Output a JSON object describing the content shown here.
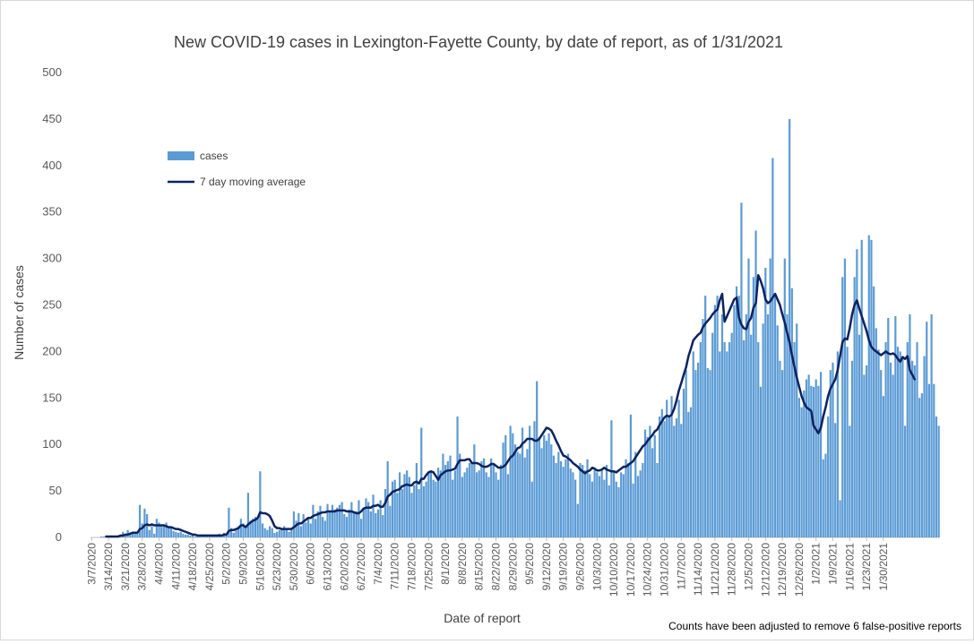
{
  "chart_data": {
    "type": "bar",
    "title": "New COVID-19 cases in Lexington-Fayette County, by date of report, as of 1/31/2021",
    "xlabel": "Date of report",
    "ylabel": "Number of cases",
    "note": "Counts have been adjusted to remove 6 false-positive reports",
    "ylim": [
      0,
      500
    ],
    "yticks": [
      0,
      50,
      100,
      150,
      200,
      250,
      300,
      350,
      400,
      450,
      500
    ],
    "x_start": "3/7/2020",
    "x_end": "1/31/2021",
    "xtick_labels": [
      "3/7/2020",
      "3/14/2020",
      "3/21/2020",
      "3/28/2020",
      "4/4/2020",
      "4/11/2020",
      "4/18/2020",
      "4/25/2020",
      "5/2/2020",
      "5/9/2020",
      "5/16/2020",
      "5/23/2020",
      "5/30/2020",
      "6/6/2020",
      "6/13/2020",
      "6/20/2020",
      "6/27/2020",
      "7/4/2020",
      "7/11/2020",
      "7/18/2020",
      "7/25/2020",
      "8/1/2020",
      "8/8/2020",
      "8/15/2020",
      "8/22/2020",
      "8/29/2020",
      "9/5/2020",
      "9/12/2020",
      "9/19/2020",
      "9/26/2020",
      "10/3/2020",
      "10/10/2020",
      "10/17/2020",
      "10/24/2020",
      "10/31/2020",
      "11/7/2020",
      "11/14/2020",
      "11/21/2020",
      "11/28/2020",
      "12/5/2020",
      "12/12/2020",
      "12/19/2020",
      "12/26/2020",
      "1/2/2021",
      "1/9/2021",
      "1/16/2021",
      "1/23/2021",
      "1/30/2021"
    ],
    "grid": false,
    "legend_position": "top-left",
    "series": [
      {
        "name": "cases",
        "kind": "bar",
        "color": "#5b9bd5",
        "values": [
          0,
          0,
          0,
          0,
          1,
          1,
          1,
          0,
          1,
          0,
          1,
          2,
          3,
          6,
          3,
          8,
          5,
          5,
          4,
          4,
          35,
          15,
          31,
          25,
          8,
          12,
          4,
          20,
          16,
          12,
          14,
          16,
          12,
          10,
          7,
          6,
          5,
          6,
          4,
          3,
          3,
          2,
          2,
          1,
          2,
          1,
          1,
          1,
          3,
          2,
          1,
          3,
          2,
          4,
          3,
          5,
          2,
          32,
          10,
          5,
          8,
          12,
          20,
          15,
          10,
          48,
          18,
          20,
          22,
          20,
          71,
          15,
          10,
          8,
          12,
          10,
          5,
          6,
          8,
          10,
          12,
          10,
          6,
          8,
          28,
          18,
          26,
          12,
          25,
          16,
          22,
          15,
          35,
          20,
          28,
          34,
          22,
          18,
          36,
          28,
          35,
          30,
          32,
          35,
          38,
          25,
          22,
          30,
          38,
          26,
          28,
          40,
          20,
          32,
          42,
          38,
          28,
          46,
          26,
          30,
          40,
          24,
          52,
          82,
          34,
          60,
          62,
          48,
          70,
          52,
          68,
          72,
          65,
          48,
          56,
          80,
          52,
          118,
          55,
          60,
          70,
          72,
          62,
          60,
          75,
          72,
          90,
          78,
          82,
          88,
          62,
          72,
          130,
          90,
          65,
          70,
          75,
          80,
          80,
          100,
          70,
          72,
          82,
          85,
          70,
          65,
          85,
          80,
          70,
          62,
          78,
          102,
          110,
          68,
          120,
          112,
          100,
          92,
          90,
          118,
          86,
          95,
          120,
          60,
          125,
          168,
          108,
          96,
          110,
          104,
          112,
          100,
          88,
          80,
          92,
          82,
          76,
          84,
          90,
          74,
          70,
          62,
          36,
          80,
          78,
          72,
          84,
          68,
          60,
          74,
          70,
          66,
          72,
          62,
          78,
          56,
          126,
          72,
          60,
          54,
          70,
          68,
          84,
          80,
          132,
          58,
          92,
          66,
          72,
          80,
          116,
          108,
          120,
          96,
          110,
          80,
          130,
          138,
          125,
          148,
          130,
          152,
          120,
          128,
          148,
          122,
          160,
          180,
          135,
          140,
          200,
          180,
          188,
          210,
          235,
          260,
          182,
          180,
          220,
          250,
          260,
          200,
          240,
          210,
          200,
          210,
          220,
          250,
          270,
          260,
          360,
          212,
          240,
          300,
          218,
          280,
          330,
          210,
          162,
          230,
          290,
          240,
          300,
          408,
          260,
          228,
          190,
          180,
          300,
          240,
          450,
          268,
          210,
          230,
          150,
          140,
          158,
          170,
          175,
          163,
          162,
          170,
          163,
          178,
          84,
          90,
          130,
          180,
          188,
          123,
          200,
          40,
          280,
          300,
          205,
          120,
          190,
          280,
          310,
          218,
          320,
          175,
          185,
          325,
          320,
          270,
          225,
          202,
          180,
          152,
          210,
          236,
          188,
          175,
          238,
          205,
          200,
          195,
          120,
          210,
          240,
          190,
          185,
          210,
          150,
          155,
          195,
          232,
          165,
          240,
          165,
          130,
          120
        ]
      },
      {
        "name": "7 day moving average",
        "kind": "line",
        "color": "#0d2262",
        "values": [
          null,
          null,
          null,
          null,
          null,
          null,
          1,
          1,
          1,
          1,
          1,
          1,
          2,
          2,
          3,
          3,
          4,
          5,
          5,
          5,
          9,
          10,
          13,
          14,
          13,
          14,
          13,
          13,
          13,
          13,
          13,
          12,
          11,
          11,
          10,
          9,
          9,
          8,
          7,
          6,
          5,
          4,
          3,
          3,
          2,
          2,
          2,
          2,
          2,
          2,
          2,
          2,
          2,
          2,
          2,
          3,
          3,
          7,
          8,
          8,
          9,
          10,
          13,
          13,
          11,
          14,
          16,
          18,
          19,
          21,
          27,
          26,
          26,
          25,
          23,
          18,
          12,
          10,
          10,
          9,
          9,
          9,
          9,
          9,
          11,
          13,
          15,
          15,
          17,
          19,
          21,
          21,
          23,
          24,
          25,
          26,
          27,
          27,
          28,
          28,
          28,
          28,
          29,
          29,
          29,
          29,
          28,
          28,
          28,
          27,
          26,
          26,
          28,
          31,
          32,
          32,
          32,
          34,
          34,
          35,
          33,
          33,
          37,
          44,
          46,
          49,
          50,
          51,
          52,
          55,
          56,
          57,
          56,
          56,
          59,
          60,
          58,
          63,
          63,
          67,
          70,
          71,
          70,
          66,
          62,
          67,
          69,
          71,
          72,
          72,
          73,
          74,
          79,
          83,
          83,
          83,
          84,
          84,
          80,
          80,
          80,
          79,
          77,
          76,
          76,
          77,
          79,
          79,
          77,
          75,
          75,
          76,
          78,
          82,
          86,
          88,
          92,
          96,
          97,
          101,
          103,
          106,
          106,
          106,
          104,
          104,
          106,
          110,
          114,
          118,
          117,
          115,
          110,
          104,
          99,
          93,
          88,
          87,
          85,
          83,
          80,
          78,
          76,
          73,
          71,
          69,
          71,
          72,
          75,
          74,
          72,
          72,
          73,
          75,
          73,
          72,
          71,
          71,
          70,
          72,
          74,
          76,
          76,
          78,
          80,
          82,
          86,
          90,
          94,
          98,
          100,
          104,
          107,
          110,
          114,
          116,
          121,
          125,
          129,
          131,
          130,
          132,
          138,
          147,
          158,
          166,
          175,
          183,
          195,
          203,
          212,
          215,
          218,
          220,
          226,
          230,
          233,
          236,
          240,
          243,
          245,
          255,
          262,
          232,
          238,
          244,
          250,
          256,
          258,
          236,
          229,
          225,
          224,
          232,
          236,
          247,
          252,
          282,
          276,
          268,
          256,
          252,
          254,
          258,
          262,
          256,
          250,
          240,
          231,
          220,
          210,
          196,
          184,
          172,
          162,
          152,
          145,
          140,
          138,
          136,
          120,
          116,
          112,
          118,
          130,
          140,
          152,
          160,
          165,
          170,
          180,
          195,
          210,
          214,
          213,
          225,
          240,
          250,
          255,
          246,
          238,
          230,
          222,
          212,
          205,
          202,
          200,
          198,
          196,
          198,
          200,
          198,
          197,
          198,
          196,
          192,
          189,
          194,
          192,
          195,
          180,
          175,
          170
        ]
      }
    ]
  }
}
